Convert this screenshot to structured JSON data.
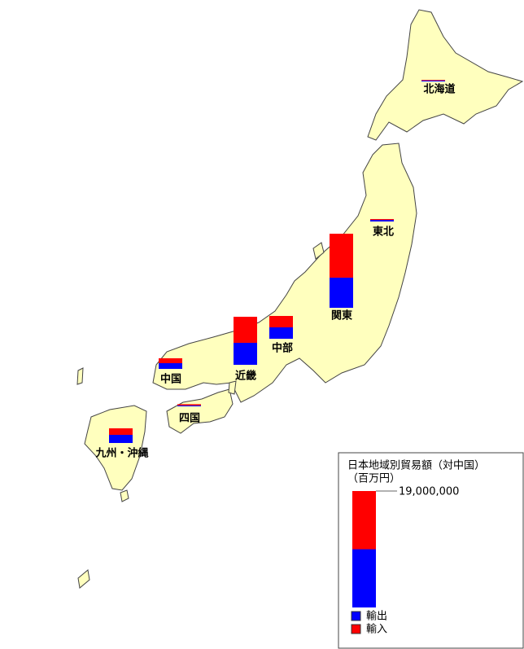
{
  "map": {
    "regions": [
      {
        "name": "北海道",
        "export": 150000,
        "import": 100000
      },
      {
        "name": "東北",
        "export": 250000,
        "import": 150000
      },
      {
        "name": "関東",
        "export": 4920000,
        "import": 7170000
      },
      {
        "name": "中部",
        "export": 1860000,
        "import": 1860000
      },
      {
        "name": "近畿",
        "export": 3590000,
        "import": 4250000
      },
      {
        "name": "中国",
        "export": 930000,
        "import": 800000
      },
      {
        "name": "四国",
        "export": 150000,
        "import": 200000
      },
      {
        "name": "九州・沖縄",
        "export": 1330000,
        "import": 1060000
      }
    ]
  },
  "legend": {
    "title": "日本地域別貿易額（対中国）",
    "unit": "（百万円）",
    "scale_value": 19000000,
    "scale_label": "19,000,000",
    "items": [
      {
        "name": "輸出",
        "color": "#0000ff"
      },
      {
        "name": "輸入",
        "color": "#ff0000"
      }
    ]
  }
}
